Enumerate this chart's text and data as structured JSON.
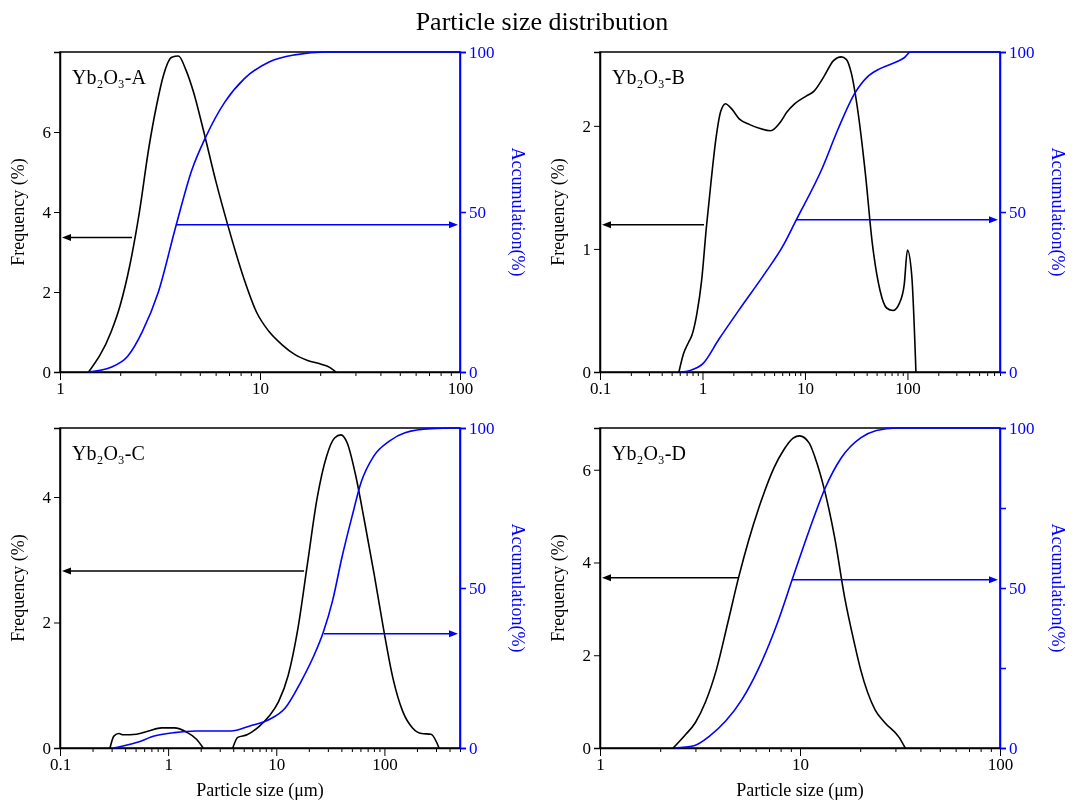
{
  "chart_data": [
    {
      "type": "line",
      "title": "Particle size distribution",
      "ylabel": "Frequency (%)",
      "y2label": "Accumulation(%)",
      "annotations": [
        "Yb₂O₃-A"
      ],
      "log": "x",
      "xlim": [
        1,
        100
      ],
      "xticks": [
        1,
        {
          "value": 2,
          "label": null
        },
        {
          "value": 3,
          "label": null
        },
        {
          "value": 4,
          "label": null
        },
        {
          "value": 5,
          "label": null
        },
        {
          "value": 6,
          "label": null
        },
        {
          "value": 7,
          "label": null
        },
        {
          "value": 8,
          "label": null
        },
        {
          "value": 9,
          "label": null
        },
        10,
        {
          "value": 20,
          "label": null
        },
        {
          "value": 30,
          "label": null
        },
        {
          "value": 40,
          "label": null
        },
        {
          "value": 50,
          "label": null
        },
        {
          "value": 60,
          "label": null
        },
        {
          "value": 70,
          "label": null
        },
        {
          "value": 80,
          "label": null
        },
        {
          "value": 90,
          "label": null
        },
        100
      ],
      "ylim": [
        0,
        8
      ],
      "yticks": [
        0,
        2,
        4,
        6
      ],
      "y2lim": [
        0,
        100
      ],
      "y2ticks": [
        0,
        50,
        100
      ],
      "series": [
        {
          "color": "#000000",
          "x": [
            1.39,
            1.8,
            2.0,
            2.23,
            2.49,
            2.78,
            3.05,
            3.3,
            3.62,
            3.91,
            4.27,
            4.65,
            5.18,
            6.0,
            6.93,
            8.33,
            9.6,
            11.1,
            12.9,
            14.9,
            17.3,
            20.4,
            22.4,
            24.0
          ],
          "values": [
            0,
            1.0,
            1.67,
            2.65,
            3.97,
            5.6,
            6.7,
            7.44,
            7.87,
            7.9,
            7.54,
            7.0,
            6.1,
            4.79,
            3.64,
            2.32,
            1.5,
            1.01,
            0.68,
            0.44,
            0.29,
            0.19,
            0.11,
            0
          ]
        },
        {
          "color": "#0000ff",
          "axis": "y2",
          "x": [
            1.39,
            1.8,
            2.18,
            2.58,
            3.1,
            3.79,
            4.55,
            5.37,
            6.68,
            8.33,
            11.1,
            14.9,
            21.6,
            100
          ],
          "values": [
            0,
            1.5,
            4.9,
            12.6,
            24.9,
            45.4,
            62.9,
            73.6,
            84.4,
            91.6,
            96.9,
            99.1,
            100,
            100
          ]
        }
      ]
    },
    {
      "type": "line",
      "ylabel": "Frequency (%)",
      "y2label": "Accumulation(%)",
      "annotations": [
        "Yb₂O₃-B"
      ],
      "log": "x",
      "xlim": [
        0.1,
        800
      ],
      "xticks": [
        0.1,
        {
          "value": 0.2,
          "label": null
        },
        {
          "value": 0.3,
          "label": null
        },
        {
          "value": 0.4,
          "label": null
        },
        {
          "value": 0.5,
          "label": null
        },
        {
          "value": 0.6,
          "label": null
        },
        {
          "value": 0.7,
          "label": null
        },
        {
          "value": 0.8,
          "label": null
        },
        {
          "value": 0.9,
          "label": null
        },
        1,
        {
          "value": 2,
          "label": null
        },
        {
          "value": 3,
          "label": null
        },
        {
          "value": 4,
          "label": null
        },
        {
          "value": 5,
          "label": null
        },
        {
          "value": 6,
          "label": null
        },
        {
          "value": 7,
          "label": null
        },
        {
          "value": 8,
          "label": null
        },
        {
          "value": 9,
          "label": null
        },
        10,
        {
          "value": 20,
          "label": null
        },
        {
          "value": 30,
          "label": null
        },
        {
          "value": 40,
          "label": null
        },
        {
          "value": 50,
          "label": null
        },
        {
          "value": 60,
          "label": null
        },
        {
          "value": 70,
          "label": null
        },
        {
          "value": 80,
          "label": null
        },
        {
          "value": 90,
          "label": null
        },
        100,
        {
          "value": 200,
          "label": null
        },
        {
          "value": 300,
          "label": null
        },
        {
          "value": 400,
          "label": null
        },
        {
          "value": 500,
          "label": null
        },
        {
          "value": 600,
          "label": null
        },
        {
          "value": 700,
          "label": null
        },
        {
          "value": 800,
          "label": null
        }
      ],
      "ylim": [
        0,
        2.6
      ],
      "yticks": [
        0,
        1,
        2
      ],
      "y2lim": [
        0,
        100
      ],
      "y2ticks": [
        0,
        50,
        100
      ],
      "series": [
        {
          "color": "#000000",
          "x": [
            0.589,
            0.654,
            0.73,
            0.79,
            0.88,
            0.98,
            1.09,
            1.21,
            1.35,
            1.51,
            1.68,
            1.87,
            2.33,
            2.89,
            3.58,
            4.62,
            5.75,
            6.64,
            7.97,
            10.2,
            12.2,
            15.3,
            19.0,
            22.6,
            25.3,
            28.3,
            32.7,
            39.0,
            45.2,
            54.1,
            62.6,
            72.3,
            83.6,
            93.0,
            100,
            110,
            121
          ],
          "values": [
            0,
            0.15,
            0.24,
            0.3,
            0.47,
            0.74,
            1.17,
            1.54,
            1.89,
            2.12,
            2.18,
            2.15,
            2.05,
            2.01,
            1.98,
            1.96,
            2.03,
            2.11,
            2.18,
            2.24,
            2.28,
            2.4,
            2.53,
            2.56,
            2.54,
            2.43,
            2.13,
            1.6,
            1.06,
            0.66,
            0.52,
            0.5,
            0.56,
            0.71,
            0.99,
            0.79,
            0
          ]
        },
        {
          "color": "#0000ff",
          "axis": "y2",
          "x": [
            0.61,
            0.76,
            1.01,
            1.45,
            2.24,
            4.0,
            6.2,
            8.25,
            14.7,
            21.1,
            30.4,
            41.9,
            54,
            77.6,
            93,
            107,
            800
          ],
          "values": [
            0,
            0.5,
            2.6,
            10.3,
            19.1,
            30.5,
            39.8,
            47.6,
            63.6,
            76,
            86.9,
            92.6,
            94.8,
            96.9,
            98.2,
            100,
            100
          ]
        }
      ]
    },
    {
      "type": "line",
      "xlabel": "Particle size (μm)",
      "ylabel": "Frequency (%)",
      "y2label": "Accumulation(%)",
      "annotations": [
        "Yb₂O₃-C"
      ],
      "log": "x",
      "xlim": [
        0.1,
        500
      ],
      "xticks": [
        0.1,
        {
          "value": 0.2,
          "label": null
        },
        {
          "value": 0.3,
          "label": null
        },
        {
          "value": 0.4,
          "label": null
        },
        {
          "value": 0.5,
          "label": null
        },
        {
          "value": 0.6,
          "label": null
        },
        {
          "value": 0.7,
          "label": null
        },
        {
          "value": 0.8,
          "label": null
        },
        {
          "value": 0.9,
          "label": null
        },
        1,
        {
          "value": 2,
          "label": null
        },
        {
          "value": 3,
          "label": null
        },
        {
          "value": 4,
          "label": null
        },
        {
          "value": 5,
          "label": null
        },
        {
          "value": 6,
          "label": null
        },
        {
          "value": 7,
          "label": null
        },
        {
          "value": 8,
          "label": null
        },
        {
          "value": 9,
          "label": null
        },
        10,
        {
          "value": 20,
          "label": null
        },
        {
          "value": 30,
          "label": null
        },
        {
          "value": 40,
          "label": null
        },
        {
          "value": 50,
          "label": null
        },
        {
          "value": 60,
          "label": null
        },
        {
          "value": 70,
          "label": null
        },
        {
          "value": 80,
          "label": null
        },
        {
          "value": 90,
          "label": null
        },
        100,
        {
          "value": 200,
          "label": null
        },
        {
          "value": 300,
          "label": null
        },
        {
          "value": 400,
          "label": null
        },
        {
          "value": 500,
          "label": null
        }
      ],
      "ylim": [
        0,
        5.1
      ],
      "yticks": [
        0,
        2,
        4
      ],
      "y2lim": [
        0,
        100
      ],
      "y2ticks": [
        0,
        50,
        100
      ],
      "series": [
        {
          "color": "#000000",
          "x": [
            0.29,
            0.315,
            0.35,
            0.385,
            0.51,
            0.66,
            0.87,
            1.14,
            1.49,
            1.83,
            2.11,
            3.0,
            3.96,
            4.4,
            5.36,
            7.0,
            8.6,
            10.5,
            12.9,
            15.8,
            19.4,
            23.8,
            29.2,
            34.6,
            39.6,
            45.3,
            53.5,
            65.5,
            80.2,
            98.3,
            120,
            148,
            182,
            221,
            270,
            320
          ],
          "values": [
            0,
            0.19,
            0.23,
            0.21,
            0.22,
            0.27,
            0.32,
            0.32,
            0.25,
            0.14,
            0,
            null,
            0,
            0.17,
            0.21,
            0.35,
            0.51,
            0.74,
            1.16,
            1.89,
            2.93,
            3.97,
            4.65,
            4.94,
            4.99,
            4.86,
            4.39,
            3.61,
            2.78,
            1.89,
            1.11,
            0.58,
            0.32,
            0.23,
            0.22,
            0
          ]
        },
        {
          "color": "#0000ff",
          "axis": "y2",
          "x": [
            0.315,
            0.51,
            0.76,
            1.14,
            1.83,
            3.8,
            5.7,
            8.6,
            12.1,
            16.9,
            22.3,
            27.1,
            33.3,
            40.5,
            49.8,
            61,
            80,
            111,
            155,
            270,
            500
          ],
          "values": [
            0,
            1.7,
            3.8,
            4.8,
            5.3,
            5.3,
            6.9,
            8.9,
            12.5,
            20.7,
            28.9,
            36.0,
            46.3,
            59.6,
            71.9,
            83.1,
            91.3,
            95.9,
            98.5,
            99.8,
            100
          ]
        }
      ]
    },
    {
      "type": "line",
      "xlabel": "Particle size (μm)",
      "ylabel": "Frequency (%)",
      "y2label": "Accumulation(%)",
      "annotations": [
        "Yb₂O₃-D"
      ],
      "log": "x",
      "xlim": [
        1,
        100
      ],
      "xticks": [
        1,
        {
          "value": 2,
          "label": null
        },
        {
          "value": 3,
          "label": null
        },
        {
          "value": 4,
          "label": null
        },
        {
          "value": 5,
          "label": null
        },
        {
          "value": 6,
          "label": null
        },
        {
          "value": 7,
          "label": null
        },
        {
          "value": 8,
          "label": null
        },
        {
          "value": 9,
          "label": null
        },
        10,
        {
          "value": 20,
          "label": null
        },
        {
          "value": 30,
          "label": null
        },
        {
          "value": 40,
          "label": null
        },
        {
          "value": 50,
          "label": null
        },
        {
          "value": 60,
          "label": null
        },
        {
          "value": 70,
          "label": null
        },
        {
          "value": 80,
          "label": null
        },
        {
          "value": 90,
          "label": null
        },
        100
      ],
      "ylim": [
        0,
        6.9
      ],
      "yticks": [
        0,
        2,
        4,
        6
      ],
      "y2lim": [
        0,
        100
      ],
      "y2ticks": [
        0,
        {
          "value": 25,
          "label": null
        },
        50,
        {
          "value": 75,
          "label": null
        },
        100
      ],
      "series": [
        {
          "color": "#000000",
          "x": [
            2.32,
            2.64,
            3.0,
            3.36,
            3.82,
            4.35,
            4.94,
            5.53,
            6.4,
            7.41,
            8.3,
            9.24,
            9.95,
            11.1,
            11.9,
            13.3,
            14.9,
            16.7,
            18.7,
            20.1,
            23.7,
            26.5,
            31.3,
            33.6
          ],
          "values": [
            0,
            0.26,
            0.55,
            0.98,
            1.69,
            2.69,
            3.69,
            4.47,
            5.33,
            6.04,
            6.43,
            6.68,
            6.73,
            6.58,
            6.26,
            5.54,
            4.54,
            3.26,
            2.26,
            1.69,
            0.83,
            0.55,
            0.23,
            0
          ]
        },
        {
          "color": "#0000ff",
          "axis": "y2",
          "x": [
            2.36,
            2.95,
            3.54,
            4.26,
            5.13,
            6.17,
            7.7,
            9.24,
            11.1,
            13.4,
            16.1,
            20.1,
            24.1,
            30.1,
            100
          ],
          "values": [
            0,
            0.7,
            3.8,
            8.5,
            15.2,
            24.5,
            39.0,
            53.5,
            67.9,
            81.4,
            90.7,
            96.9,
            99.2,
            100,
            100
          ]
        }
      ]
    }
  ]
}
